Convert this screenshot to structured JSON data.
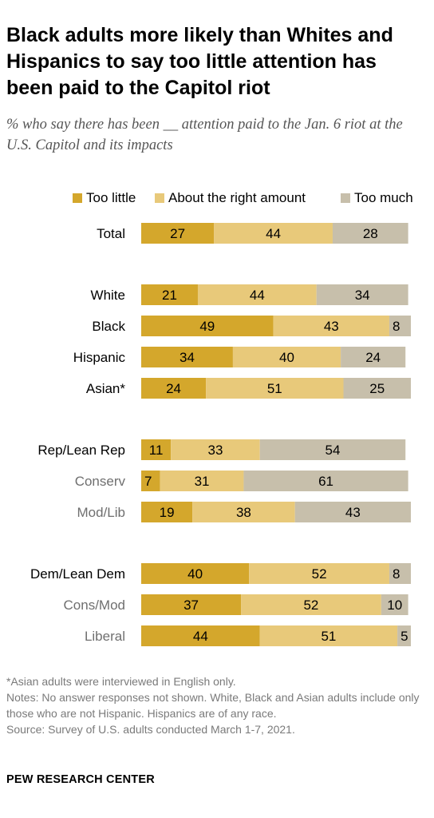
{
  "title": "Black adults more likely than Whites and Hispanics to say too little attention has been paid to the Capitol riot",
  "subtitle": "% who say there has been __ attention paid to the Jan. 6 riot at the U.S. Capitol and its impacts",
  "colors": {
    "too_little": "#D4A72C",
    "about_right": "#E8C97A",
    "too_much": "#C7BFAB",
    "label_main": "#000000",
    "label_sub": "#6f6f6f"
  },
  "chart_data": {
    "type": "bar",
    "orientation": "horizontal",
    "stacked": true,
    "legend": "top",
    "series_names": [
      "Too little",
      "About the right amount",
      "Too much"
    ],
    "rows": [
      {
        "label": "Total",
        "values": [
          27,
          44,
          28
        ],
        "sub": false,
        "group": 0
      },
      {
        "label": "White",
        "values": [
          21,
          44,
          34
        ],
        "sub": false,
        "group": 1
      },
      {
        "label": "Black",
        "values": [
          49,
          43,
          8
        ],
        "sub": false,
        "group": 1
      },
      {
        "label": "Hispanic",
        "values": [
          34,
          40,
          24
        ],
        "sub": false,
        "group": 1
      },
      {
        "label": "Asian*",
        "values": [
          24,
          51,
          25
        ],
        "sub": false,
        "group": 1
      },
      {
        "label": "Rep/Lean Rep",
        "values": [
          11,
          33,
          54
        ],
        "sub": false,
        "group": 2
      },
      {
        "label": "Conserv",
        "values": [
          7,
          31,
          61
        ],
        "sub": true,
        "group": 2
      },
      {
        "label": "Mod/Lib",
        "values": [
          19,
          38,
          43
        ],
        "sub": true,
        "group": 2
      },
      {
        "label": "Dem/Lean Dem",
        "values": [
          40,
          52,
          8
        ],
        "sub": false,
        "group": 3
      },
      {
        "label": "Cons/Mod",
        "values": [
          37,
          52,
          10
        ],
        "sub": true,
        "group": 3
      },
      {
        "label": "Liberal",
        "values": [
          44,
          51,
          5
        ],
        "sub": true,
        "group": 3
      }
    ]
  },
  "notes": {
    "asian": "*Asian adults were interviewed in English only.",
    "notes": "Notes: No answer responses not shown. White, Black and Asian adults include only those who are not Hispanic. Hispanics are of any race.",
    "source": "Source: Survey of U.S. adults conducted March 1-7, 2021."
  },
  "brand": "PEW RESEARCH CENTER"
}
